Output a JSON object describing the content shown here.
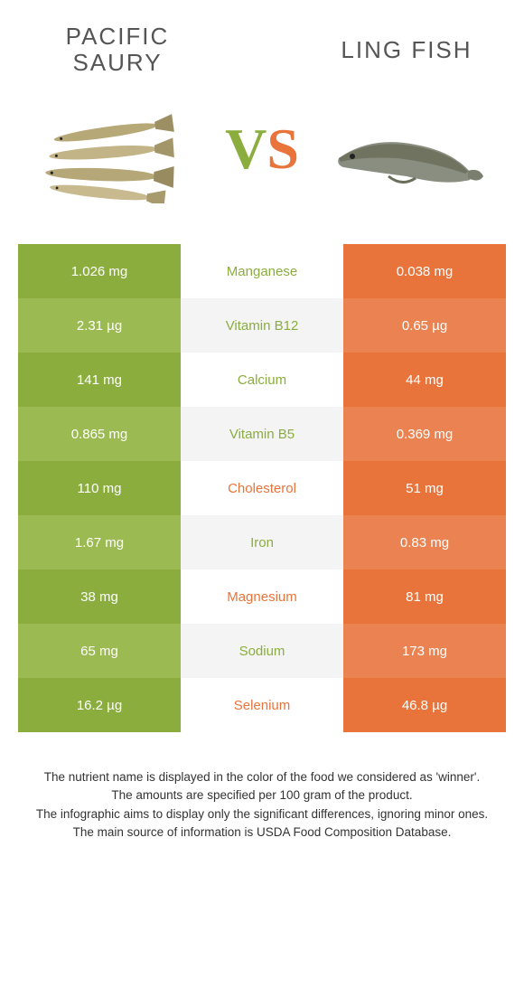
{
  "colors": {
    "left": "#8aad3e",
    "right": "#e8743b",
    "left_alt": "#9bbb52",
    "right_alt": "#ea8351",
    "mid_alt": "#f4f4f4",
    "mid": "#ffffff"
  },
  "header": {
    "left_title": "PACIFIC SAURY",
    "right_title": "LING FISH",
    "vs_v": "V",
    "vs_s": "S"
  },
  "rows": [
    {
      "left": "1.026 mg",
      "name": "Manganese",
      "right": "0.038 mg",
      "winner": "left"
    },
    {
      "left": "2.31 µg",
      "name": "Vitamin B12",
      "right": "0.65 µg",
      "winner": "left"
    },
    {
      "left": "141 mg",
      "name": "Calcium",
      "right": "44 mg",
      "winner": "left"
    },
    {
      "left": "0.865 mg",
      "name": "Vitamin B5",
      "right": "0.369 mg",
      "winner": "left"
    },
    {
      "left": "110 mg",
      "name": "Cholesterol",
      "right": "51 mg",
      "winner": "right"
    },
    {
      "left": "1.67 mg",
      "name": "Iron",
      "right": "0.83 mg",
      "winner": "left"
    },
    {
      "left": "38 mg",
      "name": "Magnesium",
      "right": "81 mg",
      "winner": "right"
    },
    {
      "left": "65 mg",
      "name": "Sodium",
      "right": "173 mg",
      "winner": "left"
    },
    {
      "left": "16.2 µg",
      "name": "Selenium",
      "right": "46.8 µg",
      "winner": "right"
    }
  ],
  "footer": {
    "line1": "The nutrient name is displayed in the color of the food we considered as 'winner'.",
    "line2": "The amounts are specified per 100 gram of the product.",
    "line3": "The infographic aims to display only the significant differences, ignoring minor ones.",
    "line4": "The main source of information is USDA Food Composition Database."
  }
}
